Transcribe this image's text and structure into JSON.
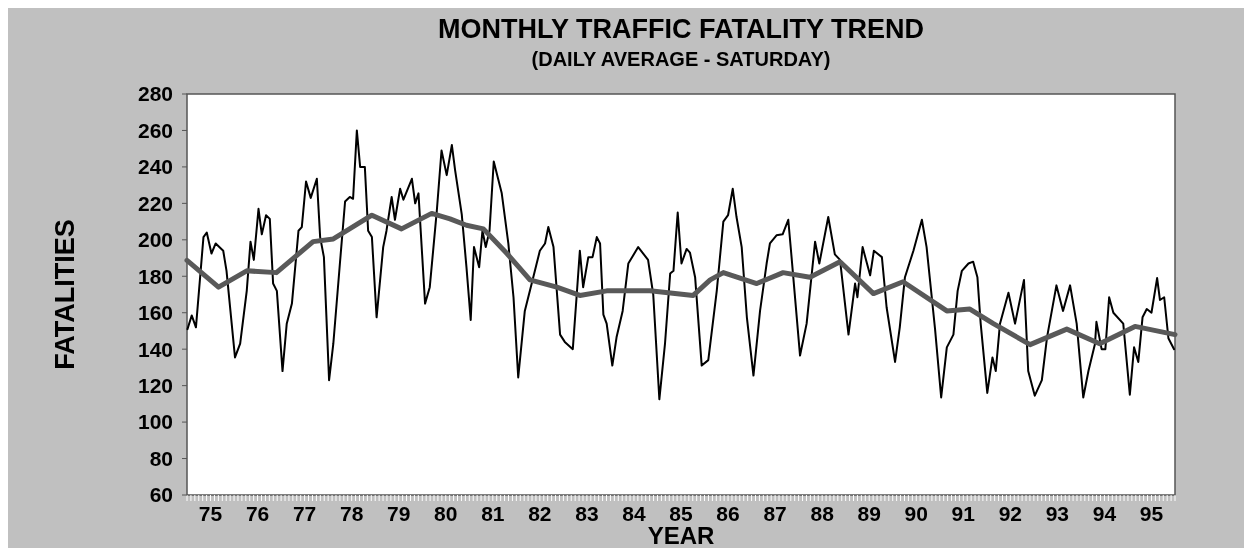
{
  "chart_data": {
    "type": "line",
    "title": "MONTHLY TRAFFIC FATALITY TREND",
    "subtitle": "(DAILY AVERAGE - SATURDAY)",
    "xlabel": "YEAR",
    "ylabel": "FATALITIES",
    "xlim": [
      75,
      96
    ],
    "xticks": [
      {
        "value": 75.5,
        "label": "75"
      },
      {
        "value": 76.5,
        "label": "76"
      },
      {
        "value": 77.5,
        "label": "77"
      },
      {
        "value": 78.5,
        "label": "78"
      },
      {
        "value": 79.5,
        "label": "79"
      },
      {
        "value": 80.5,
        "label": "80"
      },
      {
        "value": 81.5,
        "label": "81"
      },
      {
        "value": 82.5,
        "label": "82"
      },
      {
        "value": 83.5,
        "label": "83"
      },
      {
        "value": 84.5,
        "label": "84"
      },
      {
        "value": 85.5,
        "label": "85"
      },
      {
        "value": 86.5,
        "label": "86"
      },
      {
        "value": 87.5,
        "label": "87"
      },
      {
        "value": 88.5,
        "label": "88"
      },
      {
        "value": 89.5,
        "label": "89"
      },
      {
        "value": 90.5,
        "label": "90"
      },
      {
        "value": 91.5,
        "label": "91"
      },
      {
        "value": 92.5,
        "label": "92"
      },
      {
        "value": 93.5,
        "label": "93"
      },
      {
        "value": 94.5,
        "label": "94"
      },
      {
        "value": 95.5,
        "label": "95"
      }
    ],
    "ylim": [
      60,
      280
    ],
    "yticks": [
      60,
      80,
      100,
      120,
      140,
      160,
      180,
      200,
      220,
      240,
      260,
      280
    ],
    "grid": false,
    "marker": "none",
    "series": [
      {
        "color": "#000000",
        "x": [
          75.01,
          75.1,
          75.19,
          75.35,
          75.42,
          75.52,
          75.61,
          75.77,
          75.84,
          76.02,
          76.13,
          76.27,
          76.35,
          76.42,
          76.52,
          76.59,
          76.68,
          76.76,
          76.83,
          76.91,
          77.03,
          77.12,
          77.23,
          77.37,
          77.44,
          77.53,
          77.63,
          77.76,
          77.83,
          77.91,
          78.02,
          78.11,
          78.25,
          78.36,
          78.46,
          78.53,
          78.61,
          78.68,
          78.78,
          78.85,
          78.93,
          79.03,
          79.17,
          79.24,
          79.35,
          79.42,
          79.53,
          79.6,
          79.78,
          79.85,
          79.92,
          80.06,
          80.16,
          80.31,
          80.41,
          80.52,
          80.63,
          80.7,
          80.84,
          80.94,
          81.03,
          81.1,
          81.21,
          81.28,
          81.35,
          81.43,
          81.52,
          81.69,
          81.83,
          81.94,
          82.04,
          82.18,
          82.36,
          82.5,
          82.61,
          82.68,
          82.79,
          82.93,
          83.03,
          83.2,
          83.28,
          83.35,
          83.42,
          83.53,
          83.62,
          83.71,
          83.78,
          83.85,
          83.92,
          84.04,
          84.13,
          84.26,
          84.38,
          84.59,
          84.8,
          84.91,
          85.04,
          85.16,
          85.27,
          85.34,
          85.43,
          85.51,
          85.62,
          85.69,
          85.8,
          85.94,
          86.08,
          86.26,
          86.4,
          86.5,
          86.6,
          86.68,
          86.79,
          86.9,
          87.04,
          87.18,
          87.32,
          87.39,
          87.53,
          87.66,
          87.78,
          87.85,
          88.03,
          88.17,
          88.35,
          88.44,
          88.63,
          88.77,
          88.88,
          89.06,
          89.2,
          89.25,
          89.36,
          89.52,
          89.6,
          89.77,
          89.87,
          90.05,
          90.15,
          90.26,
          90.44,
          90.62,
          90.72,
          90.9,
          91.03,
          91.15,
          91.29,
          91.38,
          91.47,
          91.61,
          91.71,
          91.8,
          91.87,
          92.01,
          92.12,
          92.19,
          92.28,
          92.46,
          92.6,
          92.79,
          92.88,
          93.02,
          93.17,
          93.28,
          93.48,
          93.62,
          93.77,
          93.91,
          94.05,
          94.16,
          94.3,
          94.33,
          94.44,
          94.52,
          94.6,
          94.69,
          94.9,
          95.04,
          95.13,
          95.22,
          95.31,
          95.4,
          95.5,
          95.62,
          95.68,
          95.77,
          95.86,
          95.98
        ],
        "values": [
          151,
          158.5,
          152,
          201.5,
          204,
          192.5,
          198,
          194,
          183,
          135.5,
          143,
          172,
          199,
          189,
          217,
          203,
          213.5,
          211.5,
          176,
          172,
          128,
          154,
          165,
          205,
          207,
          232,
          223,
          233.5,
          201.5,
          190.5,
          123,
          143,
          187,
          221,
          223.5,
          222.5,
          260,
          240,
          240,
          205,
          201.5,
          157.5,
          196,
          205,
          223.5,
          211,
          228,
          222,
          233.5,
          220,
          225.5,
          165,
          174,
          216,
          249,
          235.5,
          252,
          238,
          214,
          185,
          156,
          196,
          185,
          205,
          196,
          205,
          243,
          225.5,
          198,
          168.5,
          124.5,
          161,
          179.5,
          194,
          198,
          207,
          196,
          148,
          144,
          140,
          168.5,
          194,
          174,
          190.5,
          190.5,
          201.5,
          198,
          159,
          154,
          131,
          146.5,
          161,
          187,
          196,
          189,
          170,
          112.5,
          143,
          181.5,
          183,
          215,
          187,
          195,
          193,
          179.5,
          131,
          134,
          172,
          210,
          213.5,
          228,
          212.5,
          196,
          157.5,
          125.5,
          161,
          187,
          198,
          202.5,
          203,
          211,
          190.5,
          136.5,
          154,
          199,
          187,
          212.5,
          192,
          189,
          148,
          176,
          168.5,
          196,
          180.5,
          194,
          190.5,
          163,
          133,
          152,
          179.5,
          194,
          211,
          196,
          151,
          113.5,
          141,
          148,
          172,
          183,
          187,
          188,
          179.5,
          154,
          116,
          135.5,
          128,
          154,
          171,
          154,
          178,
          128,
          114.5,
          123,
          146.5,
          175,
          161,
          175,
          154,
          113.5,
          128,
          143,
          155,
          140,
          140,
          168.5,
          160,
          154,
          115,
          141,
          133,
          157.5,
          162,
          160,
          179,
          167,
          168.5,
          146,
          140
        ]
      },
      {
        "color": "#595959",
        "x": [
          75,
          75.67,
          76.27,
          76.9,
          77.68,
          78.11,
          78.93,
          79.56,
          80.2,
          80.59,
          80.94,
          81.3,
          81.8,
          82.29,
          82.86,
          83.35,
          83.92,
          84.84,
          85.76,
          86.12,
          86.4,
          87.11,
          87.67,
          88.24,
          88.88,
          89.59,
          90.22,
          91.15,
          91.64,
          92.14,
          92.92,
          93.7,
          94.4,
          95.15,
          96
        ],
        "values": [
          188.7,
          174,
          183,
          182,
          199,
          200.5,
          213.5,
          206,
          214.5,
          211.5,
          208,
          206,
          192.5,
          178,
          174,
          169.5,
          172,
          172,
          169.5,
          178,
          182,
          176,
          182,
          179.5,
          188,
          170.5,
          177,
          161,
          162,
          154,
          142.5,
          151,
          143,
          152.5,
          148
        ]
      }
    ]
  }
}
